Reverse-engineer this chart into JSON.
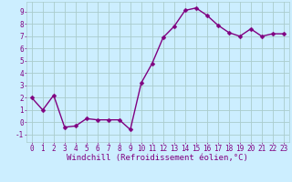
{
  "x": [
    0,
    1,
    2,
    3,
    4,
    5,
    6,
    7,
    8,
    9,
    10,
    11,
    12,
    13,
    14,
    15,
    16,
    17,
    18,
    19,
    20,
    21,
    22,
    23
  ],
  "y": [
    2.0,
    1.0,
    2.2,
    -0.4,
    -0.3,
    0.3,
    0.2,
    0.2,
    0.2,
    -0.6,
    3.2,
    4.8,
    6.9,
    7.8,
    9.1,
    9.3,
    8.7,
    7.9,
    7.3,
    7.0,
    7.6,
    7.0,
    7.2,
    7.2
  ],
  "line_color": "#800080",
  "marker": "D",
  "markersize": 2.5,
  "linewidth": 1.0,
  "bg_color": "#cceeff",
  "grid_color": "#aacccc",
  "xlabel": "Windchill (Refroidissement éolien,°C)",
  "xlim": [
    -0.5,
    23.5
  ],
  "ylim": [
    -1.6,
    9.8
  ],
  "yticks": [
    -1,
    0,
    1,
    2,
    3,
    4,
    5,
    6,
    7,
    8,
    9
  ],
  "xticks": [
    0,
    1,
    2,
    3,
    4,
    5,
    6,
    7,
    8,
    9,
    10,
    11,
    12,
    13,
    14,
    15,
    16,
    17,
    18,
    19,
    20,
    21,
    22,
    23
  ],
  "tick_color": "#800080",
  "label_fontsize": 6.5,
  "tick_fontsize": 5.5
}
